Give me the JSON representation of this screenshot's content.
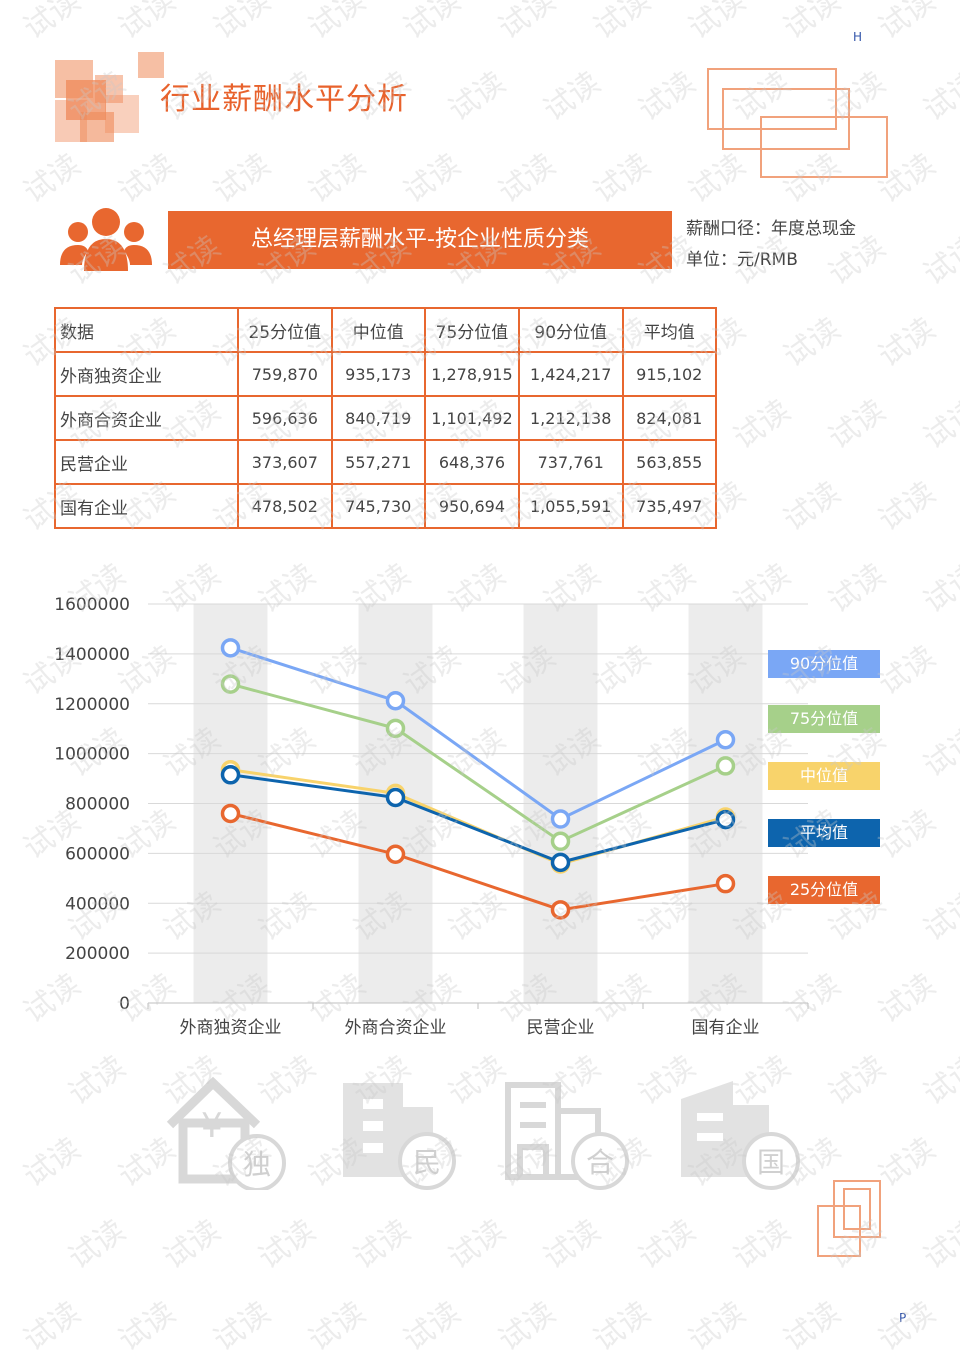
{
  "corner_top": "H",
  "corner_bottom": "P",
  "page_title": "行业薪酬水平分析",
  "banner_title": "总经理层薪酬水平-按企业性质分类",
  "meta": {
    "scope": "薪酬口径：年度总现金",
    "unit": "单位：元/RMB"
  },
  "watermark_text": "试读",
  "table": {
    "headers": [
      "数据",
      "25分位值",
      "中位值",
      "75分位值",
      "90分位值",
      "平均值"
    ],
    "rows": [
      [
        "外商独资企业",
        "759,870",
        "935,173",
        "1,278,915",
        "1,424,217",
        "915,102"
      ],
      [
        "外商合资企业",
        "596,636",
        "840,719",
        "1,101,492",
        "1,212,138",
        "824,081"
      ],
      [
        "民营企业",
        "373,607",
        "557,271",
        "648,376",
        "737,761",
        "563,855"
      ],
      [
        "国有企业",
        "478,502",
        "745,730",
        "950,694",
        "1,055,591",
        "735,497"
      ]
    ]
  },
  "chart_data": {
    "type": "line",
    "categories": [
      "外商独资企业",
      "外商合资企业",
      "民营企业",
      "国有企业"
    ],
    "ylim": [
      0,
      1600000
    ],
    "yticks": [
      "0",
      "200000",
      "400000",
      "600000",
      "800000",
      "1000000",
      "1200000",
      "1400000",
      "1600000"
    ],
    "grid": true,
    "legend_position": "right",
    "series": [
      {
        "name": "90分位值",
        "color": "#7aa7f5",
        "values": [
          1424217,
          1212138,
          737761,
          1055591
        ]
      },
      {
        "name": "75分位值",
        "color": "#a6d08a",
        "values": [
          1278915,
          1101492,
          648376,
          950694
        ]
      },
      {
        "name": "中位值",
        "color": "#f8d36b",
        "values": [
          935173,
          840719,
          557271,
          745730
        ]
      },
      {
        "name": "平均值",
        "color": "#0d64ad",
        "values": [
          915102,
          824081,
          563855,
          735497
        ]
      },
      {
        "name": "25分位值",
        "color": "#e8672f",
        "values": [
          759870,
          596636,
          373607,
          478502
        ]
      }
    ]
  },
  "icons": [
    {
      "name": "foreign-owned-house-icon",
      "label": "独"
    },
    {
      "name": "private-building-icon",
      "label": "民"
    },
    {
      "name": "joint-venture-building-icon",
      "label": "合"
    },
    {
      "name": "state-owned-building-icon",
      "label": "国"
    }
  ]
}
